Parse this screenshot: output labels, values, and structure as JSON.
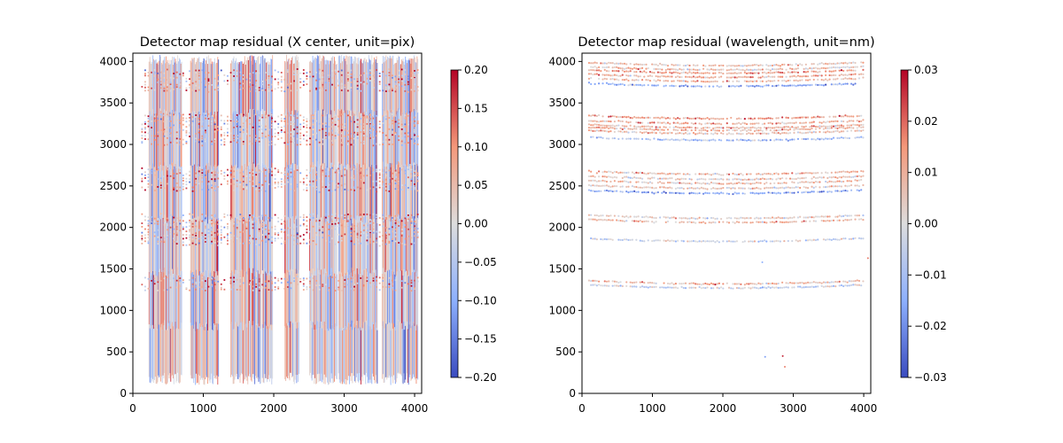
{
  "chart_data": [
    {
      "type": "scatter",
      "title": "Detector map residual (X center, unit=pix)",
      "xlabel": "",
      "ylabel": "",
      "xlim": [
        0,
        4100
      ],
      "ylim": [
        0,
        4100
      ],
      "xticks": [
        "0",
        "1000",
        "2000",
        "3000",
        "4000"
      ],
      "yticks": [
        "0",
        "500",
        "1000",
        "1500",
        "2000",
        "2500",
        "3000",
        "3500",
        "4000"
      ],
      "colorbar": {
        "range": [
          -0.2,
          0.2
        ],
        "ticks": [
          "0.20",
          "0.15",
          "0.10",
          "0.05",
          "0.00",
          "−0.05",
          "−0.10",
          "−0.15",
          "−0.20"
        ],
        "colormap": "coolwarm"
      },
      "fiber_blocks_x": [
        [
          230,
          700
        ],
        [
          820,
          1220
        ],
        [
          1390,
          1820
        ],
        [
          1840,
          1990
        ],
        [
          2160,
          2360
        ],
        [
          2510,
          2900
        ],
        [
          2920,
          3480
        ],
        [
          3540,
          4050
        ]
      ],
      "fiber_y_range": [
        100,
        4000
      ],
      "line_bands_y": [
        [
          3650,
          3900
        ],
        [
          3000,
          3350
        ],
        [
          2450,
          2700
        ],
        [
          1800,
          2150
        ],
        [
          1250,
          1400
        ]
      ],
      "residual_sigma": 0.07
    },
    {
      "type": "scatter",
      "title": "Detector map residual (wavelength, unit=nm)",
      "xlabel": "",
      "ylabel": "",
      "xlim": [
        0,
        4100
      ],
      "ylim": [
        0,
        4100
      ],
      "xticks": [
        "0",
        "1000",
        "2000",
        "3000",
        "4000"
      ],
      "yticks": [
        "0",
        "500",
        "1000",
        "1500",
        "2000",
        "2500",
        "3000",
        "3500",
        "4000"
      ],
      "colorbar": {
        "range": [
          -0.03,
          0.03
        ],
        "ticks": [
          "0.03",
          "0.02",
          "0.01",
          "0.00",
          "−0.01",
          "−0.02",
          "−0.03"
        ],
        "colormap": "coolwarm"
      },
      "lines": [
        {
          "y": 3700,
          "bias": -0.015
        },
        {
          "y": 3760,
          "bias": 0.008
        },
        {
          "y": 3810,
          "bias": 0.01
        },
        {
          "y": 3860,
          "bias": 0.012
        },
        {
          "y": 3900,
          "bias": 0.004
        },
        {
          "y": 3950,
          "bias": 0.006
        },
        {
          "y": 3050,
          "bias": -0.01
        },
        {
          "y": 3130,
          "bias": 0.006
        },
        {
          "y": 3170,
          "bias": 0.008
        },
        {
          "y": 3200,
          "bias": 0.009
        },
        {
          "y": 3250,
          "bias": 0.01
        },
        {
          "y": 3310,
          "bias": 0.012
        },
        {
          "y": 2410,
          "bias": -0.015
        },
        {
          "y": 2470,
          "bias": 0.003
        },
        {
          "y": 2530,
          "bias": 0.006
        },
        {
          "y": 2580,
          "bias": 0.004
        },
        {
          "y": 2640,
          "bias": 0.008
        },
        {
          "y": 1830,
          "bias": -0.003
        },
        {
          "y": 2060,
          "bias": 0.008
        },
        {
          "y": 2110,
          "bias": 0.003
        },
        {
          "y": 1270,
          "bias": -0.004
        },
        {
          "y": 1320,
          "bias": 0.006
        }
      ],
      "curvature_nm_edge_rise": 40,
      "outliers": [
        [
          2600,
          440
        ],
        [
          2850,
          450
        ],
        [
          2880,
          320
        ],
        [
          2560,
          1580
        ],
        [
          4060,
          1630
        ]
      ]
    }
  ]
}
